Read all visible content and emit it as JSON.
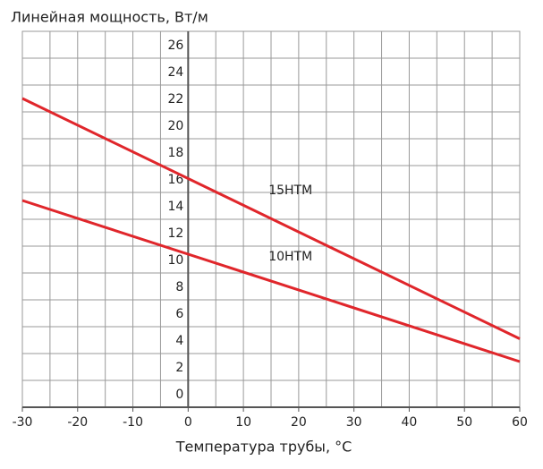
{
  "chart_data": {
    "type": "line",
    "title": "Линейная мощность, Вт/м",
    "x_label": "Температура трубы, °C",
    "xlim": [
      -30,
      60
    ],
    "xticks": [
      -30,
      -20,
      -10,
      0,
      10,
      20,
      30,
      40,
      50,
      60
    ],
    "xgrid": [
      -30,
      -25,
      -20,
      -15,
      -10,
      -5,
      0,
      5,
      10,
      15,
      20,
      25,
      30,
      35,
      40,
      45,
      50,
      55,
      60
    ],
    "ylim": [
      0,
      28
    ],
    "yticks": [
      0,
      2,
      4,
      6,
      8,
      10,
      12,
      14,
      16,
      18,
      20,
      22,
      24,
      26
    ],
    "grid": true,
    "series": [
      {
        "name": "15НТМ",
        "color": "#e0262b",
        "x": [
          -30,
          60
        ],
        "values": [
          23,
          5.1
        ]
      },
      {
        "name": "10НТМ",
        "color": "#e0262b",
        "x": [
          -30,
          60
        ],
        "values": [
          15.4,
          3.4
        ]
      }
    ]
  }
}
